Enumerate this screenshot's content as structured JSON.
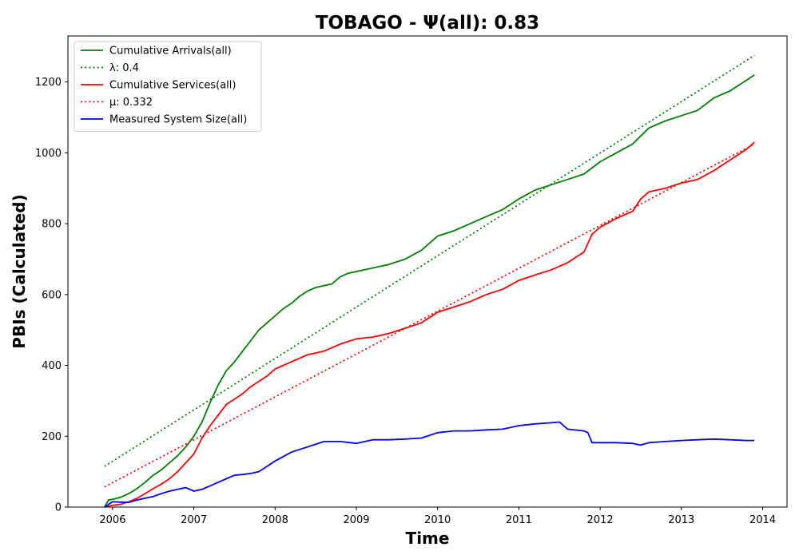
{
  "chart_data": {
    "type": "line",
    "title": "TOBAGO -  Ψ(all): 0.83",
    "xlabel": "Time",
    "ylabel": "PBIs (Calculated)",
    "xlim": [
      2005.45,
      2014.3
    ],
    "ylim": [
      0,
      1330
    ],
    "x_ticks": [
      2006,
      2007,
      2008,
      2009,
      2010,
      2011,
      2012,
      2013,
      2014
    ],
    "x_tick_labels": [
      "2006",
      "2007",
      "2008",
      "2009",
      "2010",
      "2011",
      "2012",
      "2013",
      "2014"
    ],
    "y_ticks": [
      0,
      200,
      400,
      600,
      800,
      1000,
      1200
    ],
    "y_tick_labels": [
      "0",
      "200",
      "400",
      "600",
      "800",
      "1000",
      "1200"
    ],
    "grid": false,
    "legend_position": "upper-left",
    "series": [
      {
        "name": "Cumulative Arrivals(all)",
        "color": "#008000",
        "style": "solid",
        "x": [
          2005.9,
          2005.95,
          2006.0,
          2006.1,
          2006.2,
          2006.3,
          2006.4,
          2006.5,
          2006.6,
          2006.7,
          2006.8,
          2006.9,
          2007.0,
          2007.1,
          2007.2,
          2007.3,
          2007.4,
          2007.5,
          2007.6,
          2007.7,
          2007.8,
          2007.9,
          2008.0,
          2008.1,
          2008.2,
          2008.3,
          2008.4,
          2008.5,
          2008.6,
          2008.7,
          2008.8,
          2008.9,
          2009.0,
          2009.2,
          2009.4,
          2009.6,
          2009.8,
          2010.0,
          2010.2,
          2010.4,
          2010.6,
          2010.8,
          2011.0,
          2011.2,
          2011.4,
          2011.6,
          2011.8,
          2012.0,
          2012.2,
          2012.4,
          2012.6,
          2012.8,
          2013.0,
          2013.2,
          2013.4,
          2013.6,
          2013.8,
          2013.9
        ],
        "y": [
          0,
          20,
          22,
          28,
          38,
          52,
          70,
          90,
          105,
          125,
          145,
          170,
          200,
          240,
          295,
          345,
          385,
          410,
          440,
          470,
          500,
          520,
          540,
          560,
          575,
          595,
          610,
          620,
          625,
          630,
          650,
          660,
          665,
          675,
          685,
          700,
          725,
          765,
          780,
          800,
          820,
          840,
          870,
          895,
          910,
          925,
          940,
          975,
          1000,
          1025,
          1070,
          1090,
          1105,
          1120,
          1155,
          1175,
          1205,
          1220
        ]
      },
      {
        "name": "λ: 0.4",
        "color": "#008000",
        "style": "dotted",
        "x": [
          2005.9,
          2013.9
        ],
        "y": [
          115,
          1275
        ]
      },
      {
        "name": "Cumulative Services(all)",
        "color": "#ff0000",
        "style": "solid",
        "x": [
          2005.9,
          2006.0,
          2006.1,
          2006.2,
          2006.3,
          2006.4,
          2006.5,
          2006.6,
          2006.7,
          2006.8,
          2006.9,
          2007.0,
          2007.1,
          2007.2,
          2007.3,
          2007.4,
          2007.5,
          2007.6,
          2007.7,
          2007.8,
          2007.9,
          2008.0,
          2008.2,
          2008.4,
          2008.6,
          2008.8,
          2009.0,
          2009.2,
          2009.4,
          2009.6,
          2009.8,
          2010.0,
          2010.2,
          2010.4,
          2010.6,
          2010.8,
          2011.0,
          2011.2,
          2011.4,
          2011.6,
          2011.8,
          2011.9,
          2012.0,
          2012.2,
          2012.4,
          2012.5,
          2012.6,
          2012.8,
          2013.0,
          2013.2,
          2013.4,
          2013.6,
          2013.8,
          2013.9
        ],
        "y": [
          0,
          5,
          8,
          15,
          25,
          38,
          52,
          65,
          80,
          100,
          125,
          150,
          195,
          230,
          260,
          290,
          305,
          320,
          340,
          355,
          370,
          390,
          410,
          430,
          440,
          460,
          475,
          480,
          490,
          505,
          520,
          550,
          565,
          580,
          600,
          615,
          640,
          655,
          670,
          690,
          720,
          770,
          790,
          815,
          835,
          870,
          890,
          900,
          915,
          925,
          950,
          980,
          1010,
          1030
        ]
      },
      {
        "name": "μ: 0.332",
        "color": "#ff0000",
        "style": "dotted",
        "x": [
          2005.9,
          2013.9
        ],
        "y": [
          57,
          1025
        ]
      },
      {
        "name": "Measured System Size(all)",
        "color": "#0000ff",
        "style": "solid",
        "x": [
          2005.9,
          2006.0,
          2006.1,
          2006.2,
          2006.3,
          2006.4,
          2006.5,
          2006.6,
          2006.7,
          2006.8,
          2006.9,
          2007.0,
          2007.1,
          2007.2,
          2007.3,
          2007.4,
          2007.5,
          2007.6,
          2007.7,
          2007.8,
          2007.9,
          2008.0,
          2008.2,
          2008.4,
          2008.6,
          2008.8,
          2009.0,
          2009.2,
          2009.4,
          2009.6,
          2009.8,
          2010.0,
          2010.2,
          2010.4,
          2010.6,
          2010.8,
          2011.0,
          2011.2,
          2011.4,
          2011.5,
          2011.6,
          2011.8,
          2011.85,
          2011.9,
          2012.0,
          2012.2,
          2012.4,
          2012.5,
          2012.6,
          2012.8,
          2013.0,
          2013.2,
          2013.4,
          2013.6,
          2013.8,
          2013.9
        ],
        "y": [
          0,
          15,
          14,
          13,
          20,
          25,
          30,
          38,
          45,
          50,
          55,
          45,
          50,
          60,
          70,
          80,
          90,
          92,
          95,
          100,
          115,
          130,
          155,
          170,
          185,
          185,
          180,
          190,
          190,
          192,
          195,
          210,
          215,
          215,
          218,
          220,
          230,
          235,
          238,
          240,
          220,
          215,
          210,
          182,
          182,
          182,
          180,
          175,
          182,
          185,
          188,
          190,
          192,
          190,
          188,
          188
        ]
      }
    ]
  }
}
